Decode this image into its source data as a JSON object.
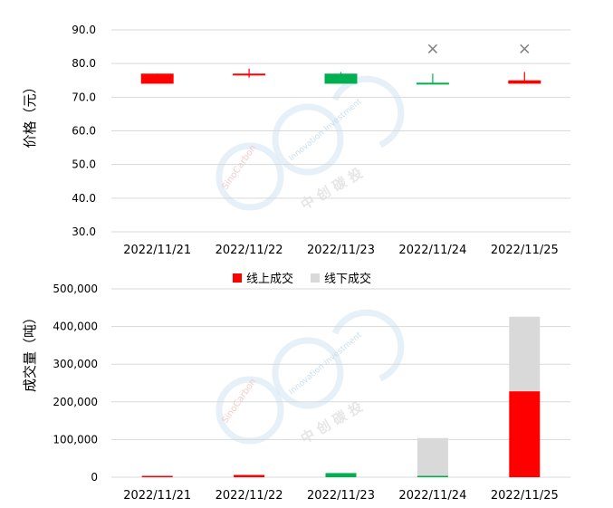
{
  "colors": {
    "up": "#ff0000",
    "down": "#00b050",
    "offline": "#d9d9d9",
    "grid": "#d9d9d9",
    "axis_text": "#000000",
    "marker": "#808080"
  },
  "chart_data": [
    {
      "type": "candlestick",
      "ylabel": "价格（元）",
      "ylim": [
        30,
        90
      ],
      "yticks": [
        "30.0",
        "40.0",
        "50.0",
        "60.0",
        "70.0",
        "80.0",
        "90.0"
      ],
      "categories": [
        "2022/11/21",
        "2022/11/22",
        "2022/11/23",
        "2022/11/24",
        "2022/11/25"
      ],
      "candles": [
        {
          "date": "2022/11/21",
          "open": 74.0,
          "close": 77.0,
          "high": 77.0,
          "low": 74.0,
          "direction": "up"
        },
        {
          "date": "2022/11/22",
          "open": 76.5,
          "close": 77.0,
          "high": 78.5,
          "low": 75.8,
          "direction": "up"
        },
        {
          "date": "2022/11/23",
          "open": 77.0,
          "close": 74.0,
          "high": 77.5,
          "low": 74.0,
          "direction": "down"
        },
        {
          "date": "2022/11/24",
          "open": 74.3,
          "close": 74.0,
          "high": 77.0,
          "low": 74.0,
          "direction": "down"
        },
        {
          "date": "2022/11/25",
          "open": 74.0,
          "close": 75.0,
          "high": 77.5,
          "low": 74.0,
          "direction": "up"
        }
      ],
      "markers": [
        {
          "date": "2022/11/24",
          "value": 84.5,
          "symbol": "×"
        },
        {
          "date": "2022/11/25",
          "value": 84.5,
          "symbol": "×"
        }
      ]
    },
    {
      "type": "bar",
      "stacked": true,
      "ylabel": "成交量（吨）",
      "ylim": [
        0,
        500000
      ],
      "yticks": [
        "0",
        "100,000",
        "200,000",
        "300,000",
        "400,000",
        "500,000"
      ],
      "categories": [
        "2022/11/21",
        "2022/11/22",
        "2022/11/23",
        "2022/11/24",
        "2022/11/25"
      ],
      "legend_position": "top-center",
      "series": [
        {
          "name": "线上成交",
          "colors": [
            "#ff0000",
            "#ff0000",
            "#00b050",
            "#00b050",
            "#ff0000"
          ],
          "values": [
            2000,
            6000,
            11000,
            2000,
            228000
          ]
        },
        {
          "name": "线下成交",
          "color": "#d9d9d9",
          "values": [
            0,
            0,
            0,
            102000,
            198000
          ]
        }
      ]
    }
  ],
  "watermark": {
    "brand_text": "SinoCarbon",
    "slogan_text": "Innovation Investment",
    "cn_text": "中 创 碳 投"
  }
}
